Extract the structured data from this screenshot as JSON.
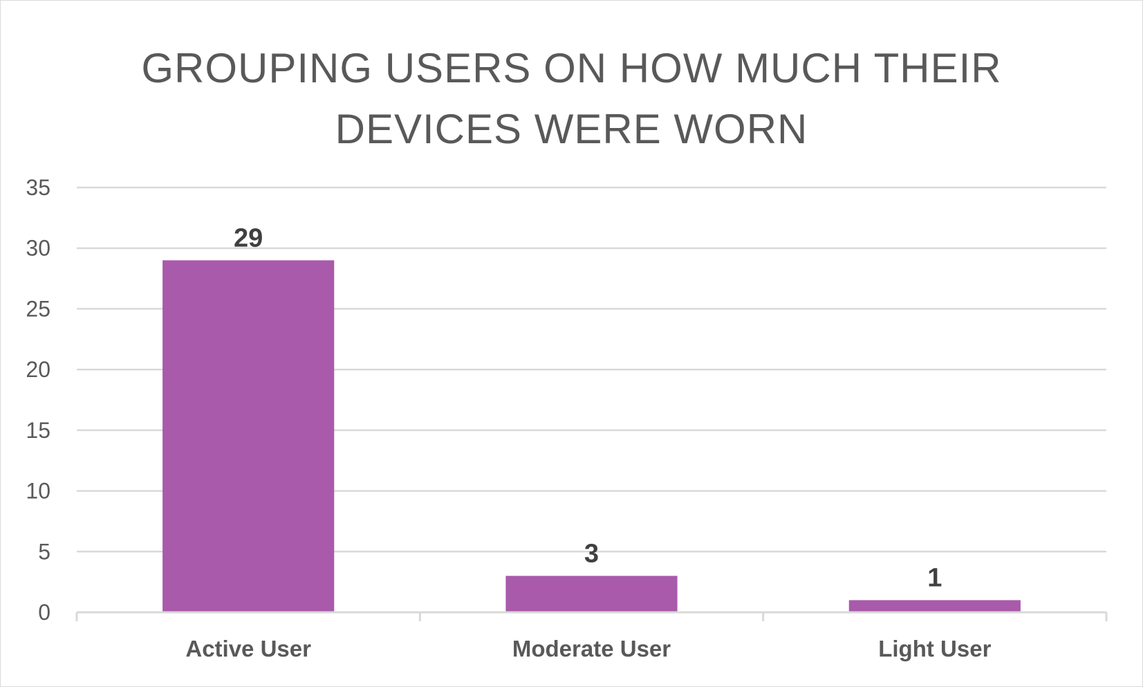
{
  "chart_data": {
    "type": "bar",
    "title": "GROUPING USERS ON HOW MUCH THEIR DEVICES WERE WORN",
    "xlabel": "",
    "ylabel": "",
    "categories": [
      "Active User",
      "Moderate User",
      "Light User"
    ],
    "values": [
      29,
      3,
      1
    ],
    "data_labels": [
      "29",
      "3",
      "1"
    ],
    "ylim": [
      0,
      35
    ],
    "yticks": [
      0,
      5,
      10,
      15,
      20,
      25,
      30,
      35
    ],
    "ytick_labels": [
      "0",
      "5",
      "10",
      "15",
      "20",
      "25",
      "30",
      "35"
    ],
    "grid": true,
    "legend": "none",
    "bar_color": "#a95aab",
    "grid_color": "#d9d9d9"
  }
}
